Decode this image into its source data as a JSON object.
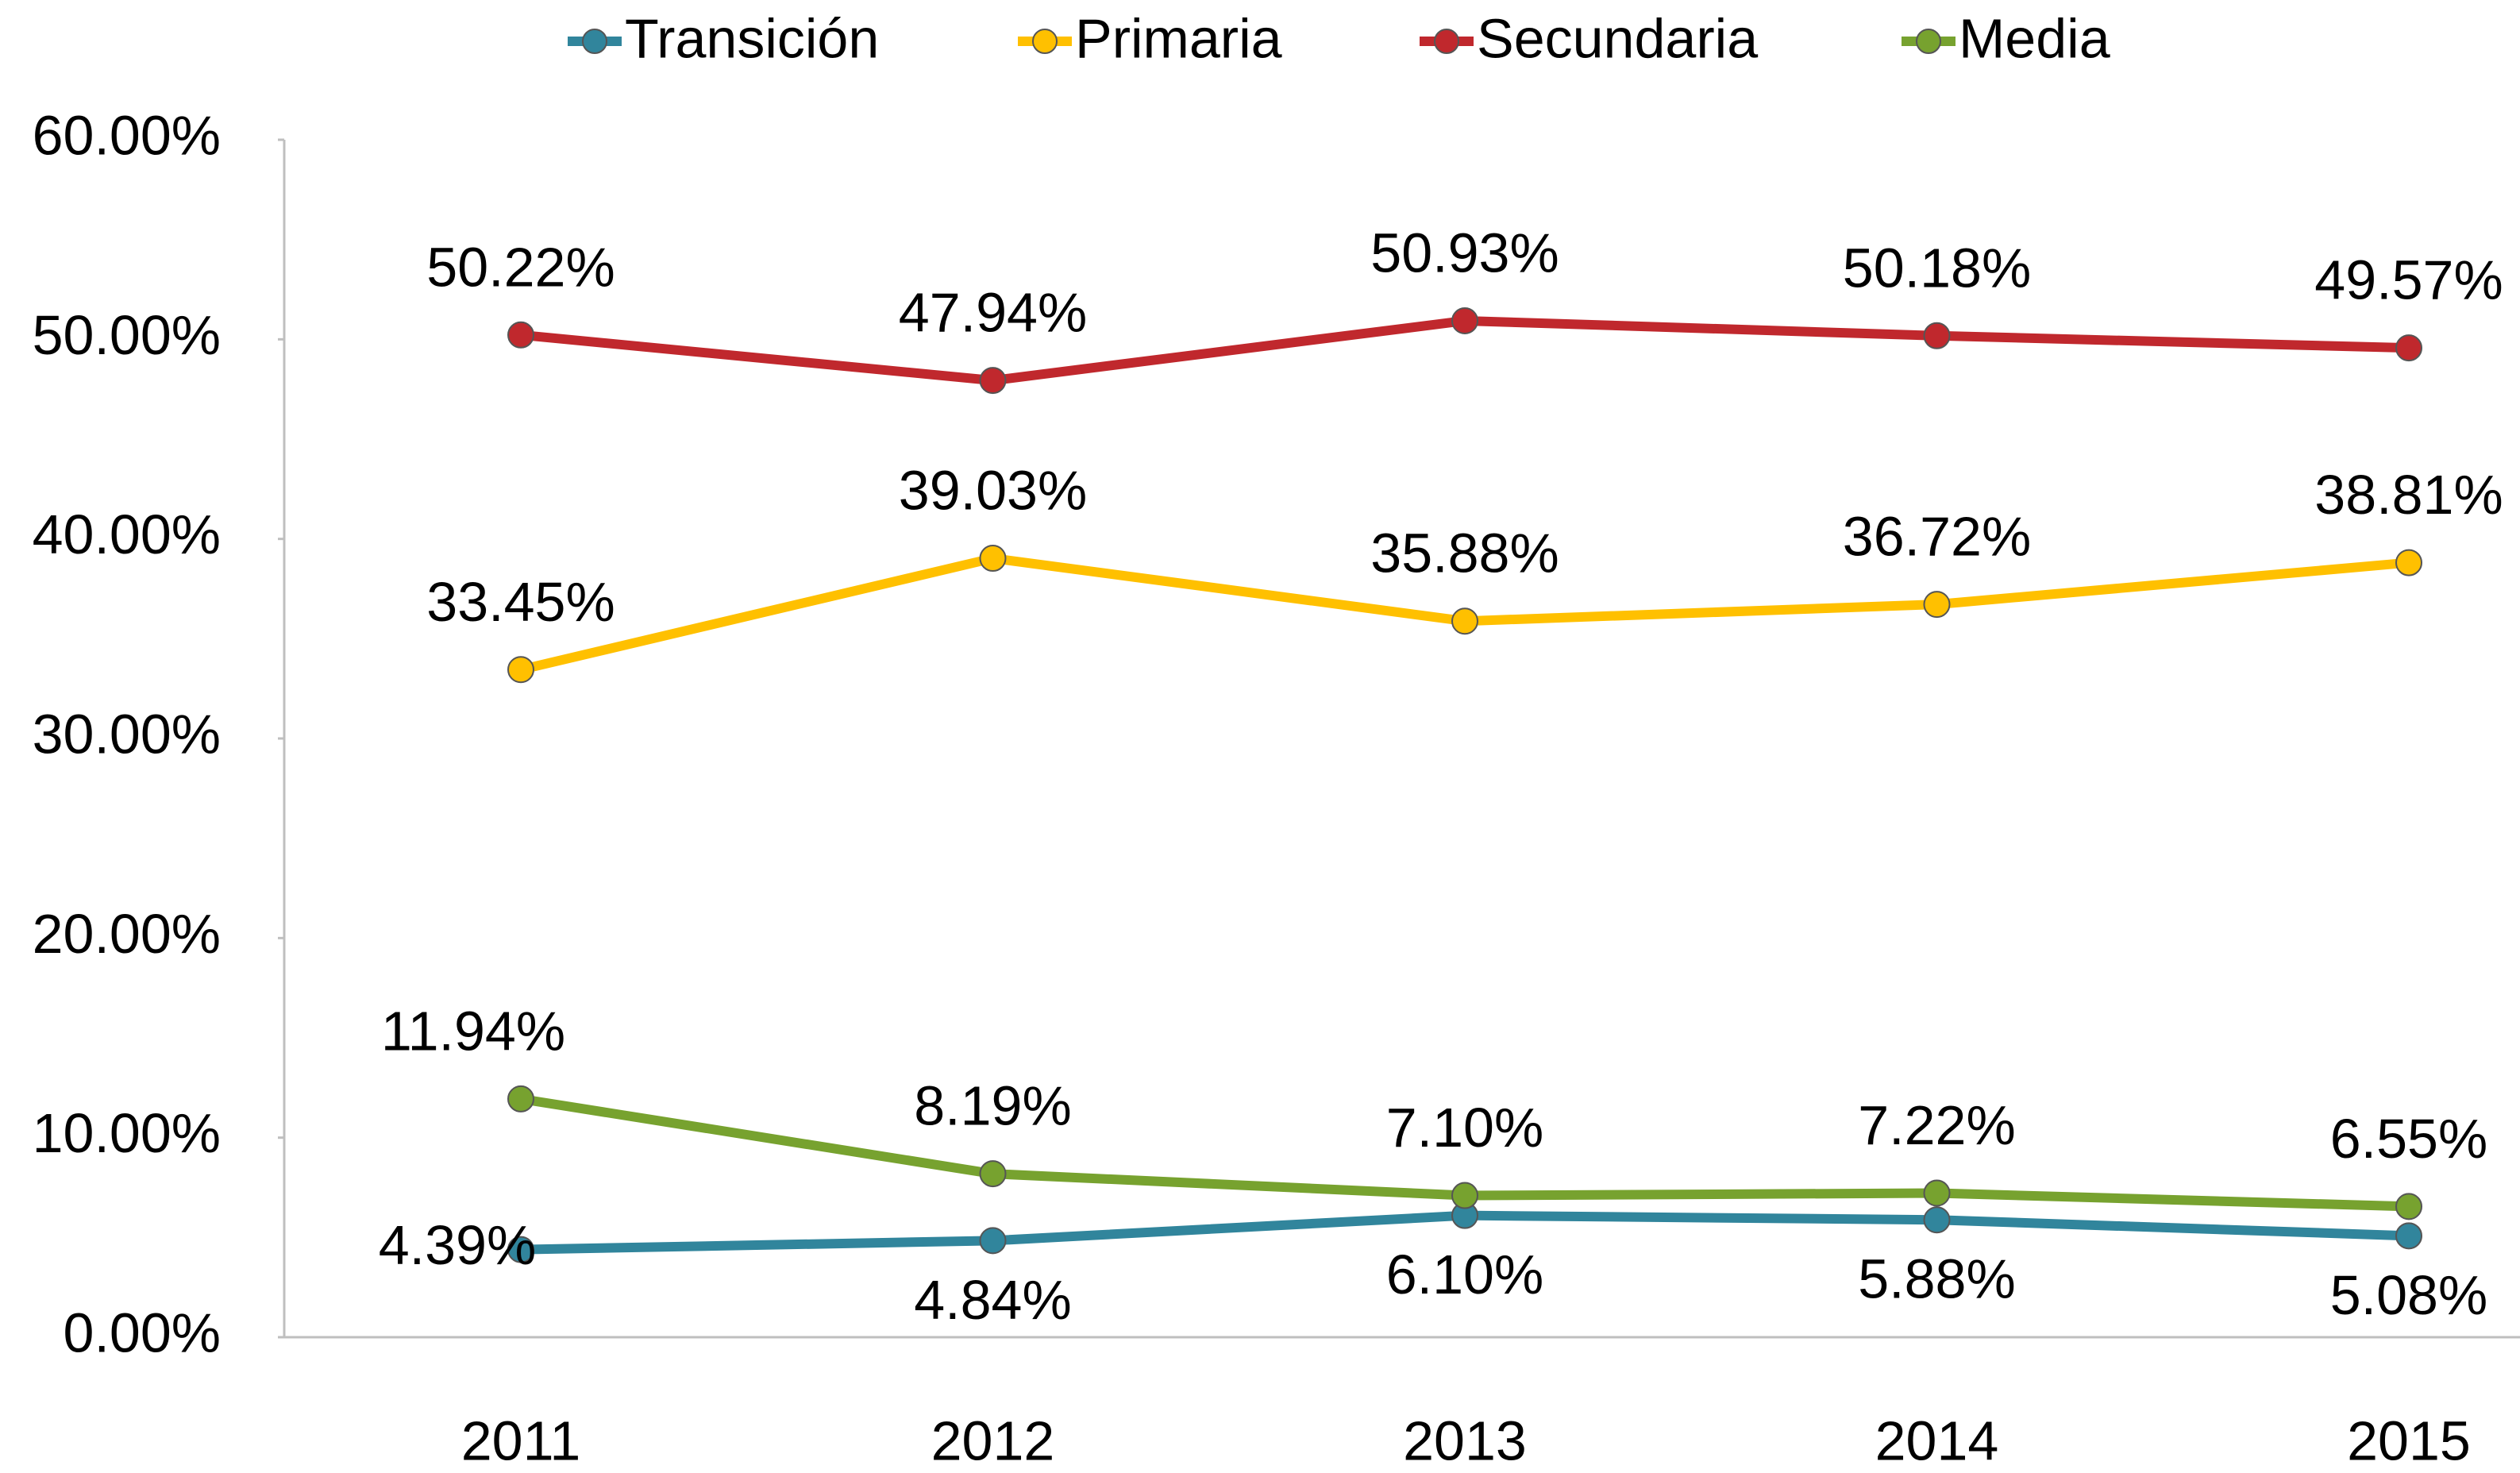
{
  "chart_data": {
    "type": "line",
    "categories": [
      "2011",
      "2012",
      "2013",
      "2014",
      "2015"
    ],
    "series": [
      {
        "name": "Transición",
        "color": "#31859c",
        "values": [
          4.39,
          4.84,
          6.1,
          5.88,
          5.08
        ],
        "value_labels": [
          "4.39%",
          "4.84%",
          "6.10%",
          "5.88%",
          "5.08%"
        ]
      },
      {
        "name": "Primaria",
        "color": "#ffc000",
        "values": [
          33.45,
          39.03,
          35.88,
          36.72,
          38.81
        ],
        "value_labels": [
          "33.45%",
          "39.03%",
          "35.88%",
          "36.72%",
          "38.81%"
        ]
      },
      {
        "name": "Secundaria",
        "color": "#c0282d",
        "values": [
          50.22,
          47.94,
          50.93,
          50.18,
          49.57
        ],
        "value_labels": [
          "50.22%",
          "47.94%",
          "50.93%",
          "50.18%",
          "49.57%"
        ]
      },
      {
        "name": "Media",
        "color": "#77a22f",
        "values": [
          11.94,
          8.19,
          7.1,
          7.22,
          6.55
        ],
        "value_labels": [
          "11.94%",
          "8.19%",
          "7.10%",
          "7.22%",
          "6.55%"
        ]
      }
    ],
    "ylim": [
      0,
      60
    ],
    "yticks": [
      {
        "value": 0,
        "label": "0.00%"
      },
      {
        "value": 10,
        "label": "10.00%"
      },
      {
        "value": 20,
        "label": "20.00%"
      },
      {
        "value": 30,
        "label": "30.00%"
      },
      {
        "value": 40,
        "label": "40.00%"
      },
      {
        "value": 50,
        "label": "50.00%"
      },
      {
        "value": 60,
        "label": "60.00%"
      }
    ],
    "grid": false,
    "legend": "top"
  }
}
